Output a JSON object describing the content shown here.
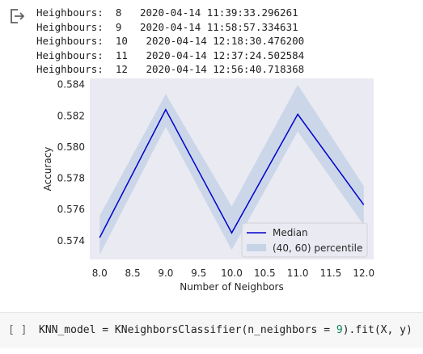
{
  "output": {
    "icon": "output-redirect-icon",
    "log": [
      {
        "label": "Heighbours:",
        "k": "8",
        "time": "2020-04-14 11:39:33.296261"
      },
      {
        "label": "Heighbours:",
        "k": "9",
        "time": "2020-04-14 11:58:57.334631"
      },
      {
        "label": "Heighbours:",
        "k": "10",
        "time": "2020-04-14 12:18:30.476200"
      },
      {
        "label": "Heighbours:",
        "k": "11",
        "time": "2020-04-14 12:37:24.502584"
      },
      {
        "label": "Heighbours:",
        "k": "12",
        "time": "2020-04-14 12:56:40.718368"
      }
    ]
  },
  "chart_data": {
    "type": "line",
    "title": "",
    "xlabel": "Number of Neighbors",
    "ylabel": "Accuracy",
    "xlim": [
      7.85,
      12.15
    ],
    "ylim": [
      0.5728,
      0.5844
    ],
    "xticks": [
      "8.0",
      "8.5",
      "9.0",
      "9.5",
      "10.0",
      "10.5",
      "11.0",
      "11.5",
      "12.0"
    ],
    "yticks": [
      "0.574",
      "0.576",
      "0.578",
      "0.580",
      "0.582",
      "0.584"
    ],
    "x": [
      8,
      9,
      10,
      11,
      12
    ],
    "series": [
      {
        "name": "Median",
        "values": [
          0.5742,
          0.5824,
          0.5745,
          0.5821,
          0.5763
        ],
        "color": "#0000cc"
      }
    ],
    "band": {
      "name": "(40, 60) percentile",
      "lower": [
        0.5731,
        0.5813,
        0.5734,
        0.581,
        0.575
      ],
      "upper": [
        0.5756,
        0.5834,
        0.5762,
        0.584,
        0.5775
      ],
      "color": "#c6d4e8"
    },
    "legend": "bottom-right",
    "grid": false,
    "background": "#eaeaf2"
  },
  "cell": {
    "bracket": "[ ]",
    "code_prefix": "KNN_model = KNeighborsClassifier(n_neighbors = ",
    "code_number": "9",
    "code_suffix": ").fit(X, y)"
  }
}
